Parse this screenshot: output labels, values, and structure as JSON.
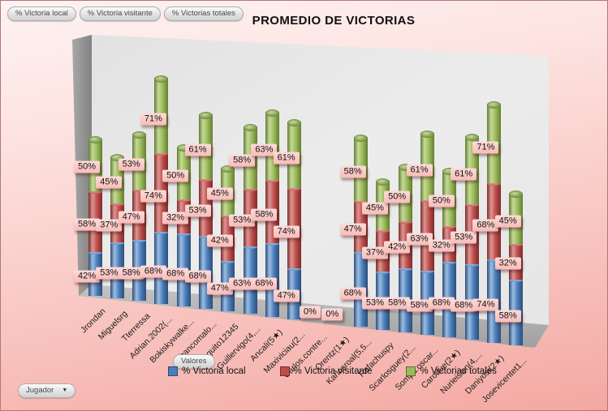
{
  "title": "PROMEDIO DE VICTORIAS",
  "pivot_buttons": {
    "series_fields": [
      "% Victoria local",
      "% Victoria visitante",
      "% Victorias totales"
    ],
    "values_button": "Valores",
    "axis_field_button": "Jugador"
  },
  "legend": {
    "position": "bottom",
    "items": [
      {
        "label": "% Victoria local",
        "color": "#4a7ebb"
      },
      {
        "label": "% Victoria visitante",
        "color": "#bf4e4b"
      },
      {
        "label": "% Victorias totales",
        "color": "#9bbb59"
      }
    ]
  },
  "chart_data": {
    "type": "bar",
    "subtype": "stacked-cylinder-3d",
    "title": "PROMEDIO DE VICTORIAS",
    "value_suffix": "%",
    "legend_position": "bottom",
    "categories": [
      "Jrondan",
      "Miguelsrg",
      "Tterressa",
      "Adrian.2002(...",
      "Bokiskywalke...",
      "Elbancomalo...",
      "Dieguito12345",
      "Guillervigo(4,...",
      "Ancali(5★)",
      "Maxiviciau(2...",
      "Carlos.contre...",
      "Orentz(1★)",
      "Karlosroal(5,5...",
      "Rafachuspy",
      "Scarlosguey(2...",
      "Sompa.oscar...",
      "Carodue(2★)",
      "Nurieision(4,...",
      "Daniyosi(2★)",
      "Josevicentet1..."
    ],
    "series": [
      {
        "name": "% Victoria local",
        "color": "#4a7ebb",
        "color_light": "#9dbde2",
        "color_dark": "#2c4d79",
        "values": [
          42,
          53,
          58,
          68,
          68,
          68,
          47,
          63,
          68,
          47,
          0,
          0,
          68,
          53,
          58,
          58,
          68,
          68,
          74,
          58
        ]
      },
      {
        "name": "% Victoria visitante",
        "color": "#bf4e4b",
        "color_light": "#dd9694",
        "color_dark": "#7c2b29",
        "values": [
          58,
          37,
          47,
          74,
          32,
          53,
          42,
          53,
          58,
          74,
          0,
          0,
          47,
          37,
          42,
          63,
          32,
          53,
          68,
          32
        ]
      },
      {
        "name": "% Victorias totales",
        "color": "#9bbb59",
        "color_light": "#c6d99a",
        "color_dark": "#637d33",
        "values": [
          50,
          45,
          53,
          71,
          50,
          61,
          45,
          58,
          63,
          61,
          0,
          0,
          58,
          45,
          50,
          61,
          50,
          61,
          71,
          45
        ]
      }
    ],
    "zero_label": "0%"
  }
}
